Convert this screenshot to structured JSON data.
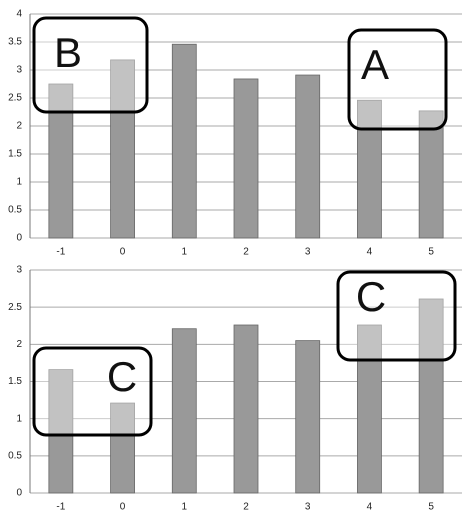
{
  "chart_data": [
    {
      "type": "bar",
      "categories": [
        "-1",
        "0",
        "1",
        "2",
        "3",
        "4",
        "5"
      ],
      "values": [
        2.75,
        3.18,
        3.46,
        2.84,
        2.91,
        2.46,
        2.27
      ],
      "color": "#999999",
      "ylim": [
        0,
        4
      ],
      "yticks": [
        0,
        0.5,
        1,
        1.5,
        2,
        2.5,
        3,
        3.5,
        4
      ],
      "grid": true,
      "annotations": [
        "B",
        "A"
      ]
    },
    {
      "type": "bar",
      "categories": [
        "-1",
        "0",
        "1",
        "2",
        "3",
        "4",
        "5"
      ],
      "values": [
        1.66,
        1.21,
        2.21,
        2.26,
        2.05,
        2.26,
        2.61
      ],
      "color": "#999999",
      "ylim": [
        0,
        3
      ],
      "yticks": [
        0,
        0.5,
        1,
        1.5,
        2,
        2.5,
        3
      ],
      "grid": true,
      "annotations": [
        "C",
        "C"
      ]
    }
  ]
}
